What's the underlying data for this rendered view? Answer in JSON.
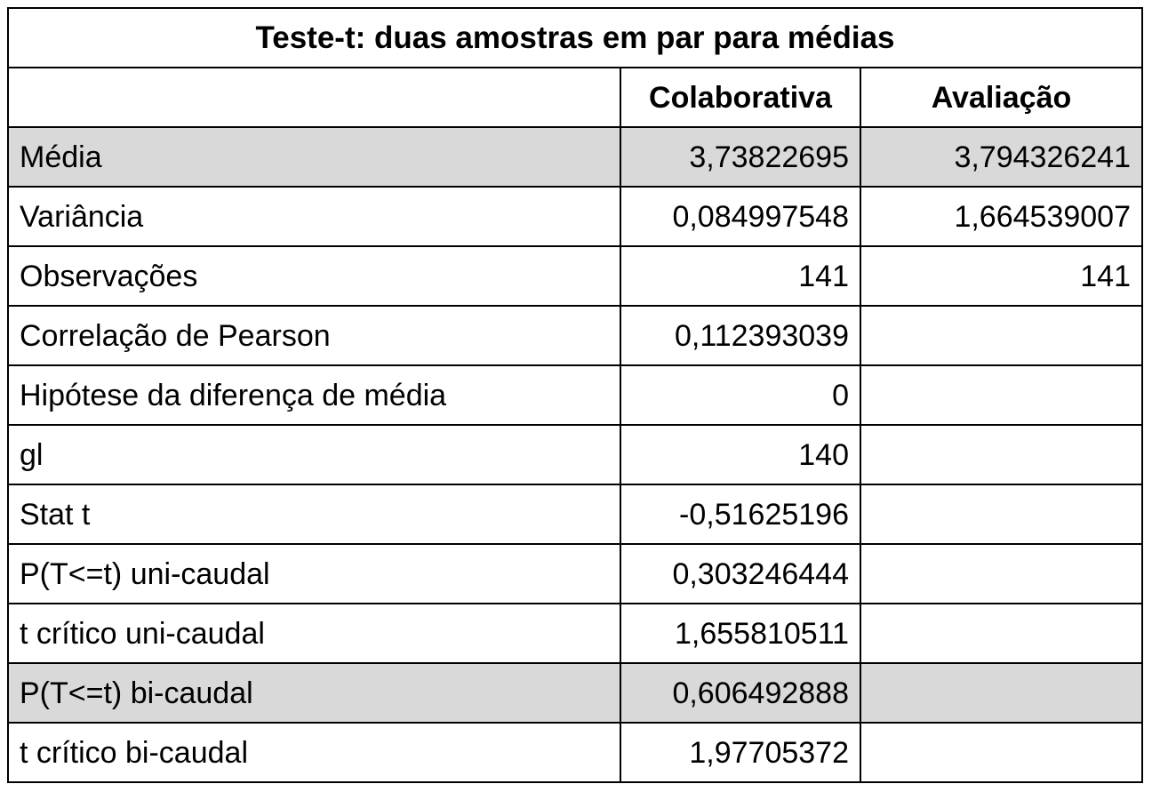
{
  "table": {
    "title": "Teste-t: duas amostras em par para médias",
    "headers": [
      "",
      "Colaborativa",
      "Avaliação"
    ],
    "rows": [
      {
        "label": "Média",
        "colaborativa": "3,73822695",
        "avaliacao": "3,794326241",
        "shaded": true
      },
      {
        "label": "Variância",
        "colaborativa": "0,084997548",
        "avaliacao": "1,664539007",
        "shaded": false
      },
      {
        "label": "Observações",
        "colaborativa": "141",
        "avaliacao": "141",
        "shaded": false
      },
      {
        "label": "Correlação de Pearson",
        "colaborativa": "0,112393039",
        "avaliacao": "",
        "shaded": false
      },
      {
        "label": "Hipótese da diferença de média",
        "colaborativa": "0",
        "avaliacao": "",
        "shaded": false
      },
      {
        "label": "gl",
        "colaborativa": "140",
        "avaliacao": "",
        "shaded": false
      },
      {
        "label": "Stat t",
        "colaborativa": "-0,51625196",
        "avaliacao": "",
        "shaded": false
      },
      {
        "label": "P(T<=t) uni-caudal",
        "colaborativa": "0,303246444",
        "avaliacao": "",
        "shaded": false
      },
      {
        "label": "t crítico uni-caudal",
        "colaborativa": "1,655810511",
        "avaliacao": "",
        "shaded": false
      },
      {
        "label": "P(T<=t) bi-caudal",
        "colaborativa": "0,606492888",
        "avaliacao": "",
        "shaded": true
      },
      {
        "label": "t crítico bi-caudal",
        "colaborativa": "1,97705372",
        "avaliacao": "",
        "shaded": false
      }
    ],
    "colors": {
      "shaded_row": "#d9d9d9",
      "border": "#000000",
      "background": "#ffffff"
    }
  }
}
